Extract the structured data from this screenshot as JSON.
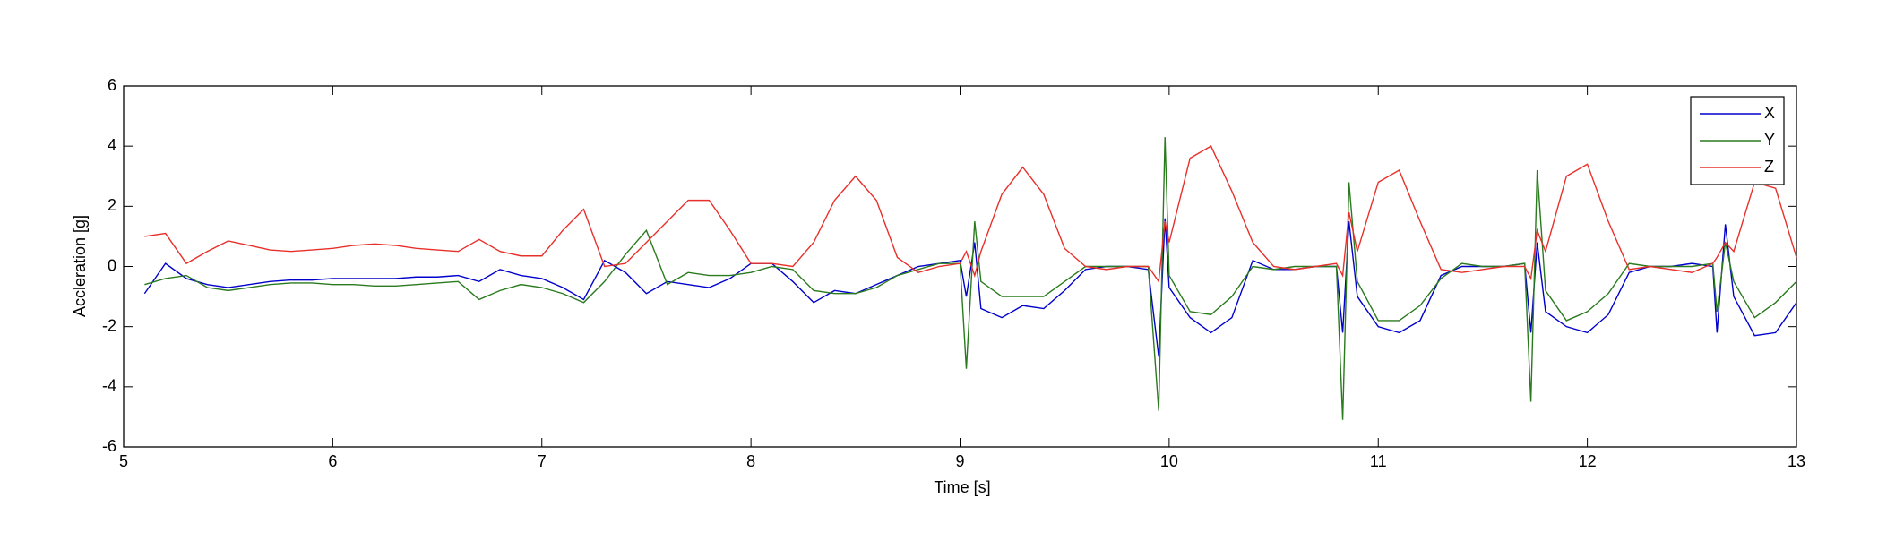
{
  "chart_data": {
    "type": "line",
    "xlabel": "Time [s]",
    "ylabel": "Accleration [g]",
    "x": [
      5.1,
      5.2,
      5.3,
      5.4,
      5.5,
      5.6,
      5.7,
      5.8,
      5.9,
      6.0,
      6.1,
      6.2,
      6.3,
      6.4,
      6.5,
      6.6,
      6.7,
      6.8,
      6.9,
      7.0,
      7.1,
      7.2,
      7.3,
      7.4,
      7.5,
      7.6,
      7.7,
      7.8,
      7.9,
      8.0,
      8.1,
      8.2,
      8.3,
      8.4,
      8.5,
      8.6,
      8.7,
      8.8,
      8.9,
      9.0,
      9.03,
      9.07,
      9.1,
      9.2,
      9.3,
      9.4,
      9.5,
      9.6,
      9.7,
      9.8,
      9.9,
      9.95,
      9.98,
      10.0,
      10.1,
      10.2,
      10.3,
      10.4,
      10.5,
      10.6,
      10.7,
      10.8,
      10.83,
      10.86,
      10.9,
      11.0,
      11.1,
      11.2,
      11.3,
      11.4,
      11.5,
      11.6,
      11.7,
      11.73,
      11.76,
      11.8,
      11.9,
      12.0,
      12.1,
      12.2,
      12.3,
      12.4,
      12.5,
      12.6,
      12.62,
      12.66,
      12.7,
      12.8,
      12.9,
      13.0
    ],
    "series": [
      {
        "name": "X",
        "color": "#0000cc",
        "values": [
          -0.9,
          0.1,
          -0.4,
          -0.6,
          -0.7,
          -0.6,
          -0.5,
          -0.45,
          -0.45,
          -0.4,
          -0.4,
          -0.4,
          -0.4,
          -0.35,
          -0.35,
          -0.3,
          -0.5,
          -0.1,
          -0.3,
          -0.4,
          -0.7,
          -1.1,
          0.2,
          -0.2,
          -0.9,
          -0.5,
          -0.6,
          -0.7,
          -0.4,
          0.1,
          0.1,
          -0.5,
          -1.2,
          -0.8,
          -0.9,
          -0.6,
          -0.3,
          0.0,
          0.1,
          0.2,
          -1.0,
          0.8,
          -1.4,
          -1.7,
          -1.3,
          -1.4,
          -0.8,
          -0.1,
          0.0,
          0.0,
          -0.1,
          -3.0,
          1.6,
          -0.7,
          -1.7,
          -2.2,
          -1.7,
          0.2,
          -0.1,
          -0.1,
          0.0,
          0.0,
          -2.2,
          1.5,
          -1.0,
          -2.0,
          -2.2,
          -1.8,
          -0.3,
          0.0,
          0.0,
          0.0,
          0.1,
          -2.2,
          0.8,
          -1.5,
          -2.0,
          -2.2,
          -1.6,
          -0.2,
          0.0,
          0.0,
          0.1,
          0.0,
          -2.2,
          1.4,
          -1.0,
          -2.3,
          -2.2,
          -1.2
        ]
      },
      {
        "name": "Y",
        "color": "#2a7a1e",
        "values": [
          -0.6,
          -0.4,
          -0.3,
          -0.7,
          -0.8,
          -0.7,
          -0.6,
          -0.55,
          -0.55,
          -0.6,
          -0.6,
          -0.65,
          -0.65,
          -0.6,
          -0.55,
          -0.5,
          -1.1,
          -0.8,
          -0.6,
          -0.7,
          -0.9,
          -1.2,
          -0.5,
          0.4,
          1.2,
          -0.6,
          -0.2,
          -0.3,
          -0.3,
          -0.2,
          0.0,
          -0.1,
          -0.8,
          -0.9,
          -0.9,
          -0.7,
          -0.3,
          -0.1,
          0.1,
          0.1,
          -3.4,
          1.5,
          -0.5,
          -1.0,
          -1.0,
          -1.0,
          -0.5,
          0.0,
          0.0,
          0.0,
          0.0,
          -4.8,
          4.3,
          -0.3,
          -1.5,
          -1.6,
          -1.0,
          0.0,
          -0.1,
          0.0,
          0.0,
          0.0,
          -5.1,
          2.8,
          -0.5,
          -1.8,
          -1.8,
          -1.3,
          -0.4,
          0.1,
          0.0,
          0.0,
          0.1,
          -4.5,
          3.2,
          -0.8,
          -1.8,
          -1.5,
          -0.9,
          0.1,
          0.0,
          0.0,
          0.0,
          0.1,
          -1.5,
          0.8,
          -0.5,
          -1.7,
          -1.2,
          -0.5
        ]
      },
      {
        "name": "Z",
        "color": "#e8302a",
        "values": [
          1.0,
          1.1,
          0.1,
          0.5,
          0.85,
          0.7,
          0.55,
          0.5,
          0.55,
          0.6,
          0.7,
          0.75,
          0.7,
          0.6,
          0.55,
          0.5,
          0.9,
          0.5,
          0.35,
          0.35,
          1.2,
          1.9,
          0.0,
          0.1,
          0.8,
          1.5,
          2.2,
          2.2,
          1.2,
          0.1,
          0.1,
          0.0,
          0.8,
          2.2,
          3.0,
          2.2,
          0.3,
          -0.2,
          0.0,
          0.1,
          0.5,
          -0.3,
          0.5,
          2.4,
          3.3,
          2.4,
          0.6,
          0.0,
          -0.1,
          0.0,
          0.0,
          -0.5,
          1.5,
          0.8,
          3.6,
          4.0,
          2.5,
          0.8,
          0.0,
          -0.1,
          0.0,
          0.1,
          -0.3,
          1.8,
          0.5,
          2.8,
          3.2,
          1.5,
          -0.1,
          -0.2,
          -0.1,
          0.0,
          0.0,
          -0.4,
          1.2,
          0.5,
          3.0,
          3.4,
          1.5,
          -0.1,
          0.0,
          -0.1,
          -0.2,
          0.1,
          0.3,
          0.8,
          0.5,
          2.8,
          2.6,
          0.3
        ]
      }
    ],
    "xlim": [
      5,
      13
    ],
    "xticks": [
      5,
      6,
      7,
      8,
      9,
      10,
      11,
      12,
      13
    ],
    "ylim": [
      -6,
      6
    ],
    "yticks": [
      -6,
      -4,
      -2,
      0,
      2,
      4,
      6
    ],
    "legend": "upper right"
  }
}
